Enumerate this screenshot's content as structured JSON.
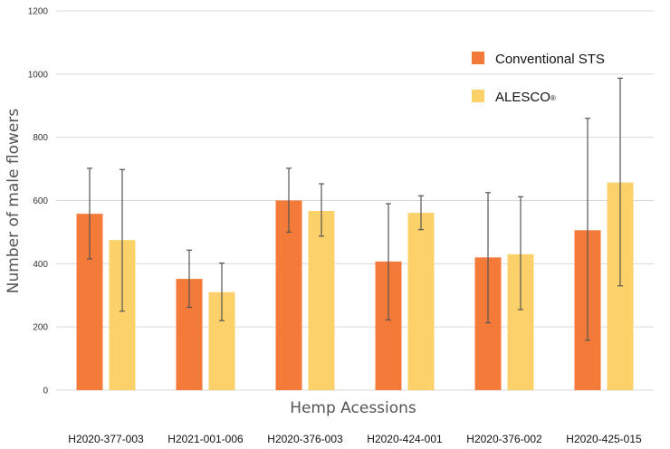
{
  "colors": {
    "conventional": "#f47a3a",
    "alesco": "#fdd16a",
    "grid": "#d9d9d9",
    "errorbar": "#555555"
  },
  "chart_data": {
    "type": "bar",
    "title": "",
    "xlabel": "Hemp Acessions",
    "ylabel": "Number of male flowers",
    "ylim": [
      0,
      1200
    ],
    "yticks": [
      0,
      200,
      400,
      600,
      800,
      1000,
      1200
    ],
    "grid": true,
    "legend_position": "top-right",
    "categories": [
      "H2020-377-003",
      "H2021-001-006",
      "H2020-376-003",
      "H2020-424-001",
      "H2020-376-002",
      "H2020-425-015"
    ],
    "series": [
      {
        "name": "Conventional STS",
        "values": [
          558,
          352,
          600,
          407,
          420,
          506
        ],
        "error_low": [
          415,
          262,
          500,
          222,
          213,
          158
        ],
        "error_high": [
          702,
          443,
          702,
          590,
          625,
          860
        ]
      },
      {
        "name": "ALESCO",
        "name_superscript": "®",
        "values": [
          475,
          310,
          567,
          561,
          430,
          657
        ],
        "error_low": [
          250,
          220,
          487,
          508,
          255,
          330
        ],
        "error_high": [
          698,
          402,
          653,
          615,
          612,
          987
        ]
      }
    ]
  }
}
